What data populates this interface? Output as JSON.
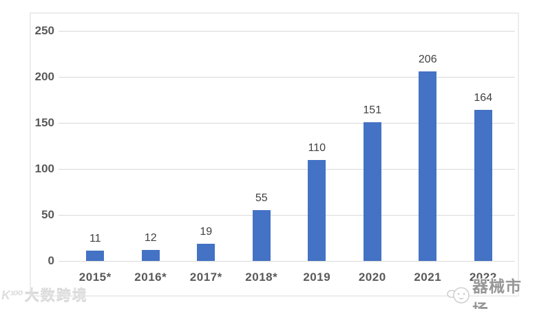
{
  "chart_data": {
    "type": "bar",
    "categories": [
      "2015*",
      "2016*",
      "2017*",
      "2018*",
      "2019",
      "2020",
      "2021",
      "2022"
    ],
    "values": [
      11,
      12,
      19,
      55,
      110,
      151,
      206,
      164
    ],
    "title": "",
    "xlabel": "",
    "ylabel": "",
    "ylim": [
      0,
      250
    ],
    "yticks": [
      0,
      50,
      100,
      150,
      200,
      250
    ],
    "grid": true,
    "legend": "none",
    "bar_color": "#4472c4",
    "value_label_color": "#404040",
    "axis_label_color": "#595959",
    "gridline_color": "#d9d9d9"
  },
  "watermarks": {
    "bottom_left": {
      "logo_glyph": "K¹⁰⁰",
      "text": "大数跨境"
    },
    "bottom_right": {
      "text": "器械市场"
    }
  }
}
